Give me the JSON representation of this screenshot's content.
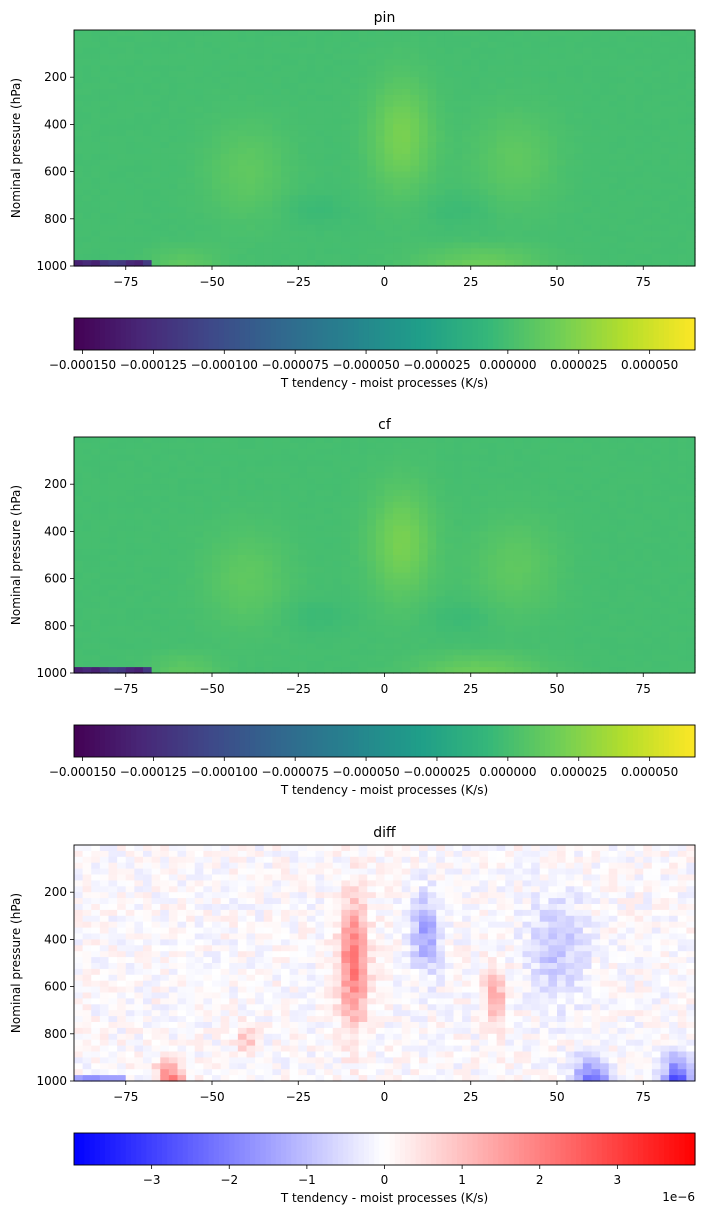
{
  "colormaps": {
    "viridis": [
      "#440154",
      "#482878",
      "#3e4989",
      "#31688e",
      "#26828e",
      "#1f9e89",
      "#35b779",
      "#6ece58",
      "#b5de2b",
      "#fde725"
    ],
    "bwr": [
      "#0000ff",
      "#ffffff",
      "#ff0000"
    ]
  },
  "chart_data": [
    {
      "type": "heatmap",
      "panel_id": "pin",
      "title": "pin",
      "xlabel": "",
      "ylabel": "Nominal pressure (hPa)",
      "xlim": [
        -90,
        90
      ],
      "ylim": [
        1000,
        0
      ],
      "x_ticks": [
        -75,
        -50,
        -25,
        0,
        25,
        50,
        75
      ],
      "x_tick_labels": [
        "−75",
        "−50",
        "−25",
        "0",
        "25",
        "50",
        "75"
      ],
      "y_ticks": [
        200,
        400,
        600,
        800,
        1000
      ],
      "y_tick_labels": [
        "200",
        "400",
        "600",
        "800",
        "1000"
      ],
      "colormap": "viridis",
      "field": "moist",
      "variant": 0,
      "colorbar": {
        "label": "T tendency - moist processes (K/s)",
        "vmin": -0.000153,
        "vmax": 6.6e-05,
        "ticks": [
          -0.00015,
          -0.000125,
          -0.0001,
          -7.5e-05,
          -5e-05,
          -2.5e-05,
          0.0,
          2.5e-05,
          5e-05
        ],
        "tick_labels": [
          "−0.000150",
          "−0.000125",
          "−0.000100",
          "−0.000075",
          "−0.000050",
          "−0.000025",
          "0.000000",
          "0.000025",
          "0.000050"
        ],
        "offset_text": ""
      }
    },
    {
      "type": "heatmap",
      "panel_id": "cf",
      "title": "cf",
      "xlabel": "",
      "ylabel": "Nominal pressure (hPa)",
      "xlim": [
        -90,
        90
      ],
      "ylim": [
        1000,
        0
      ],
      "x_ticks": [
        -75,
        -50,
        -25,
        0,
        25,
        50,
        75
      ],
      "x_tick_labels": [
        "−75",
        "−50",
        "−25",
        "0",
        "25",
        "50",
        "75"
      ],
      "y_ticks": [
        200,
        400,
        600,
        800,
        1000
      ],
      "y_tick_labels": [
        "200",
        "400",
        "600",
        "800",
        "1000"
      ],
      "colormap": "viridis",
      "field": "moist",
      "variant": 1,
      "colorbar": {
        "label": "T tendency - moist processes (K/s)",
        "vmin": -0.000153,
        "vmax": 6.6e-05,
        "ticks": [
          -0.00015,
          -0.000125,
          -0.0001,
          -7.5e-05,
          -5e-05,
          -2.5e-05,
          0.0,
          2.5e-05,
          5e-05
        ],
        "tick_labels": [
          "−0.000150",
          "−0.000125",
          "−0.000100",
          "−0.000075",
          "−0.000050",
          "−0.000025",
          "0.000000",
          "0.000025",
          "0.000050"
        ],
        "offset_text": ""
      }
    },
    {
      "type": "heatmap",
      "panel_id": "diff",
      "title": "diff",
      "xlabel": "",
      "ylabel": "Nominal pressure (hPa)",
      "xlim": [
        -90,
        90
      ],
      "ylim": [
        1000,
        0
      ],
      "x_ticks": [
        -75,
        -50,
        -25,
        0,
        25,
        50,
        75
      ],
      "x_tick_labels": [
        "−75",
        "−50",
        "−25",
        "0",
        "25",
        "50",
        "75"
      ],
      "y_ticks": [
        200,
        400,
        600,
        800,
        1000
      ],
      "y_tick_labels": [
        "200",
        "400",
        "600",
        "800",
        "1000"
      ],
      "colormap": "bwr",
      "field": "diff",
      "variant": 2,
      "colorbar": {
        "label": "T tendency - moist processes (K/s)",
        "vmin": -4e-06,
        "vmax": 4e-06,
        "ticks": [
          -3e-06,
          -2e-06,
          -1e-06,
          0,
          1e-06,
          2e-06,
          3e-06
        ],
        "tick_labels": [
          "−3",
          "−2",
          "−1",
          "0",
          "1",
          "2",
          "3"
        ],
        "offset_text": "1e−6"
      }
    }
  ]
}
